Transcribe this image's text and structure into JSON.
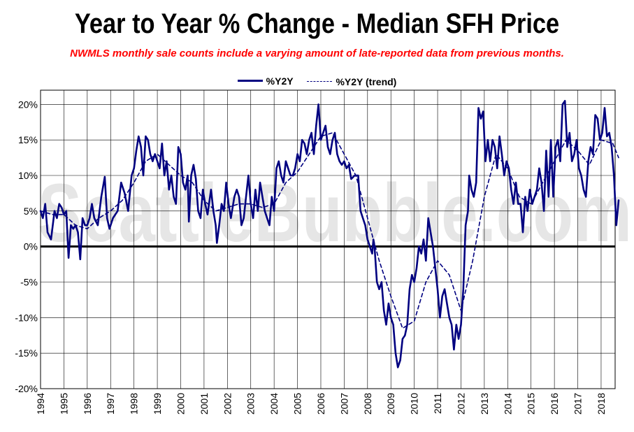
{
  "chart_data": {
    "type": "line",
    "title": "Year to Year % Change - Median SFH Price",
    "subtitle": "NWMLS monthly sale counts include a varying amount of late-reported  data from previous months.",
    "xlabel": "",
    "ylabel": "",
    "ylim": [
      -20,
      22
    ],
    "xlim": [
      1994.0,
      2018.6
    ],
    "grid": true,
    "legend_position": "top-center",
    "watermark": "SeattleBubble.com",
    "x_tick_labels": [
      "1994",
      "1995",
      "1996",
      "1997",
      "1998",
      "1999",
      "2000",
      "2001",
      "2002",
      "2003",
      "2004",
      "2005",
      "2006",
      "2007",
      "2008",
      "2009",
      "2010",
      "2011",
      "2012",
      "2013",
      "2014",
      "2015",
      "2016",
      "2017",
      "2018"
    ],
    "y_tick_labels": [
      "-20%",
      "-15%",
      "-10%",
      "-5%",
      "0%",
      "5%",
      "10%",
      "15%",
      "20%"
    ],
    "series": [
      {
        "name": "%Y2Y",
        "style": "solid",
        "color": "#000080",
        "points": [
          [
            1994.0,
            5
          ],
          [
            1994.1,
            4
          ],
          [
            1994.2,
            6
          ],
          [
            1994.3,
            2
          ],
          [
            1994.45,
            1
          ],
          [
            1994.6,
            5
          ],
          [
            1994.7,
            4
          ],
          [
            1994.8,
            6
          ],
          [
            1994.9,
            5.5
          ],
          [
            1995.0,
            4.5
          ],
          [
            1995.1,
            5
          ],
          [
            1995.2,
            -1.6
          ],
          [
            1995.3,
            3
          ],
          [
            1995.4,
            2.5
          ],
          [
            1995.5,
            3
          ],
          [
            1995.6,
            2
          ],
          [
            1995.7,
            -1.8
          ],
          [
            1995.8,
            4
          ],
          [
            1995.9,
            3
          ],
          [
            1996.0,
            3
          ],
          [
            1996.1,
            4
          ],
          [
            1996.2,
            6
          ],
          [
            1996.3,
            4
          ],
          [
            1996.45,
            3
          ],
          [
            1996.6,
            7
          ],
          [
            1996.75,
            9.8
          ],
          [
            1996.85,
            4
          ],
          [
            1996.95,
            2.5
          ],
          [
            1997.1,
            4
          ],
          [
            1997.3,
            5
          ],
          [
            1997.45,
            9
          ],
          [
            1997.6,
            7.5
          ],
          [
            1997.75,
            5
          ],
          [
            1997.9,
            10
          ],
          [
            1998.0,
            11
          ],
          [
            1998.1,
            13.5
          ],
          [
            1998.2,
            15.5
          ],
          [
            1998.3,
            14
          ],
          [
            1998.4,
            10
          ],
          [
            1998.5,
            15.5
          ],
          [
            1998.6,
            15
          ],
          [
            1998.7,
            13
          ],
          [
            1998.8,
            12
          ],
          [
            1998.9,
            13
          ],
          [
            1999.0,
            12
          ],
          [
            1999.1,
            11
          ],
          [
            1999.2,
            14.5
          ],
          [
            1999.3,
            10
          ],
          [
            1999.4,
            12
          ],
          [
            1999.5,
            8
          ],
          [
            1999.6,
            10
          ],
          [
            1999.7,
            7
          ],
          [
            1999.8,
            6
          ],
          [
            1999.9,
            14
          ],
          [
            2000.0,
            13
          ],
          [
            2000.1,
            9
          ],
          [
            2000.2,
            8
          ],
          [
            2000.3,
            10
          ],
          [
            2000.35,
            3.5
          ],
          [
            2000.45,
            10
          ],
          [
            2000.55,
            11.5
          ],
          [
            2000.65,
            9.5
          ],
          [
            2000.75,
            5
          ],
          [
            2000.85,
            4
          ],
          [
            2000.95,
            8
          ],
          [
            2001.05,
            6
          ],
          [
            2001.15,
            4.5
          ],
          [
            2001.3,
            8
          ],
          [
            2001.4,
            5
          ],
          [
            2001.5,
            3
          ],
          [
            2001.55,
            0.5
          ],
          [
            2001.65,
            3
          ],
          [
            2001.75,
            6
          ],
          [
            2001.85,
            5
          ],
          [
            2001.95,
            9
          ],
          [
            2002.05,
            6
          ],
          [
            2002.15,
            4
          ],
          [
            2002.3,
            7
          ],
          [
            2002.4,
            8
          ],
          [
            2002.5,
            7
          ],
          [
            2002.6,
            3
          ],
          [
            2002.7,
            4
          ],
          [
            2002.8,
            7
          ],
          [
            2002.9,
            10
          ],
          [
            2003.0,
            6
          ],
          [
            2003.1,
            4
          ],
          [
            2003.2,
            8
          ],
          [
            2003.3,
            5
          ],
          [
            2003.4,
            9
          ],
          [
            2003.5,
            7
          ],
          [
            2003.6,
            5
          ],
          [
            2003.7,
            4
          ],
          [
            2003.8,
            3
          ],
          [
            2003.9,
            7
          ],
          [
            2004.0,
            5
          ],
          [
            2004.1,
            11
          ],
          [
            2004.2,
            12
          ],
          [
            2004.3,
            10
          ],
          [
            2004.4,
            9
          ],
          [
            2004.5,
            12
          ],
          [
            2004.6,
            11
          ],
          [
            2004.7,
            10
          ],
          [
            2004.8,
            10
          ],
          [
            2004.9,
            11
          ],
          [
            2005.0,
            13
          ],
          [
            2005.1,
            12
          ],
          [
            2005.2,
            15
          ],
          [
            2005.3,
            14.5
          ],
          [
            2005.4,
            13
          ],
          [
            2005.5,
            15
          ],
          [
            2005.6,
            16
          ],
          [
            2005.7,
            13
          ],
          [
            2005.8,
            17
          ],
          [
            2005.9,
            20
          ],
          [
            2006.0,
            15
          ],
          [
            2006.1,
            16
          ],
          [
            2006.2,
            17
          ],
          [
            2006.3,
            14
          ],
          [
            2006.4,
            13
          ],
          [
            2006.5,
            15
          ],
          [
            2006.6,
            16
          ],
          [
            2006.7,
            13
          ],
          [
            2006.8,
            12
          ],
          [
            2006.9,
            11.5
          ],
          [
            2007.0,
            12
          ],
          [
            2007.1,
            11
          ],
          [
            2007.2,
            11.5
          ],
          [
            2007.3,
            9.5
          ],
          [
            2007.45,
            10
          ],
          [
            2007.6,
            10
          ],
          [
            2007.7,
            5
          ],
          [
            2007.8,
            4
          ],
          [
            2007.9,
            3
          ],
          [
            2008.0,
            1
          ],
          [
            2008.1,
            0
          ],
          [
            2008.2,
            -1
          ],
          [
            2008.25,
            1
          ],
          [
            2008.3,
            0
          ],
          [
            2008.4,
            -5
          ],
          [
            2008.5,
            -6
          ],
          [
            2008.6,
            -5
          ],
          [
            2008.7,
            -9
          ],
          [
            2008.8,
            -11
          ],
          [
            2008.9,
            -8
          ],
          [
            2009.0,
            -10
          ],
          [
            2009.1,
            -11
          ],
          [
            2009.2,
            -15
          ],
          [
            2009.3,
            -17
          ],
          [
            2009.4,
            -16
          ],
          [
            2009.5,
            -13
          ],
          [
            2009.6,
            -12.5
          ],
          [
            2009.7,
            -11
          ],
          [
            2009.8,
            -6
          ],
          [
            2009.9,
            -4
          ],
          [
            2010.0,
            -5
          ],
          [
            2010.1,
            -3
          ],
          [
            2010.2,
            0
          ],
          [
            2010.3,
            -1
          ],
          [
            2010.4,
            1
          ],
          [
            2010.5,
            -2
          ],
          [
            2010.6,
            4
          ],
          [
            2010.7,
            2
          ],
          [
            2010.8,
            0
          ],
          [
            2010.9,
            -3
          ],
          [
            2011.0,
            -6
          ],
          [
            2011.1,
            -10
          ],
          [
            2011.2,
            -7
          ],
          [
            2011.3,
            -6
          ],
          [
            2011.4,
            -8
          ],
          [
            2011.5,
            -10
          ],
          [
            2011.6,
            -11
          ],
          [
            2011.7,
            -14.5
          ],
          [
            2011.8,
            -11
          ],
          [
            2011.9,
            -13
          ],
          [
            2012.0,
            -11
          ],
          [
            2012.1,
            -6
          ],
          [
            2012.2,
            3
          ],
          [
            2012.3,
            5
          ],
          [
            2012.35,
            10
          ],
          [
            2012.45,
            8
          ],
          [
            2012.55,
            7
          ],
          [
            2012.65,
            9
          ],
          [
            2012.75,
            19.5
          ],
          [
            2012.85,
            18
          ],
          [
            2012.95,
            19
          ],
          [
            2013.05,
            12
          ],
          [
            2013.15,
            15
          ],
          [
            2013.25,
            12
          ],
          [
            2013.35,
            15
          ],
          [
            2013.45,
            14
          ],
          [
            2013.55,
            11
          ],
          [
            2013.65,
            15.5
          ],
          [
            2013.75,
            13
          ],
          [
            2013.85,
            10
          ],
          [
            2013.95,
            12
          ],
          [
            2014.05,
            11
          ],
          [
            2014.15,
            8
          ],
          [
            2014.25,
            6
          ],
          [
            2014.35,
            9
          ],
          [
            2014.45,
            6
          ],
          [
            2014.55,
            6
          ],
          [
            2014.65,
            2
          ],
          [
            2014.75,
            7
          ],
          [
            2014.85,
            5
          ],
          [
            2014.95,
            8
          ],
          [
            2015.05,
            6
          ],
          [
            2015.15,
            7
          ],
          [
            2015.25,
            8
          ],
          [
            2015.35,
            11
          ],
          [
            2015.45,
            9
          ],
          [
            2015.55,
            5
          ],
          [
            2015.65,
            13.5
          ],
          [
            2015.75,
            7
          ],
          [
            2015.85,
            15
          ],
          [
            2015.95,
            7
          ],
          [
            2016.05,
            14
          ],
          [
            2016.15,
            15
          ],
          [
            2016.25,
            12
          ],
          [
            2016.35,
            20
          ],
          [
            2016.45,
            20.5
          ],
          [
            2016.55,
            14
          ],
          [
            2016.65,
            16
          ],
          [
            2016.75,
            12
          ],
          [
            2016.85,
            13
          ],
          [
            2016.95,
            15
          ],
          [
            2017.05,
            11
          ],
          [
            2017.15,
            10
          ],
          [
            2017.25,
            8
          ],
          [
            2017.35,
            7
          ],
          [
            2017.45,
            12
          ],
          [
            2017.55,
            14
          ],
          [
            2017.65,
            13
          ],
          [
            2017.75,
            18.5
          ],
          [
            2017.85,
            18
          ],
          [
            2017.95,
            15
          ],
          [
            2018.05,
            16
          ],
          [
            2018.15,
            19.5
          ],
          [
            2018.25,
            15.5
          ],
          [
            2018.35,
            16
          ],
          [
            2018.45,
            14
          ],
          [
            2018.55,
            10
          ],
          [
            2018.65,
            3
          ],
          [
            2018.75,
            6.5
          ]
        ]
      },
      {
        "name": "%Y2Y (trend)",
        "style": "dashed",
        "color": "#000080",
        "points": [
          [
            1994.0,
            5
          ],
          [
            1994.5,
            4.5
          ],
          [
            1995.0,
            4.5
          ],
          [
            1995.5,
            3
          ],
          [
            1996.0,
            2.5
          ],
          [
            1996.5,
            4
          ],
          [
            1997.0,
            5
          ],
          [
            1997.5,
            6.5
          ],
          [
            1998.0,
            9
          ],
          [
            1998.5,
            12
          ],
          [
            1999.0,
            13
          ],
          [
            1999.5,
            11.5
          ],
          [
            2000.0,
            10
          ],
          [
            2000.5,
            9
          ],
          [
            2001.0,
            6.5
          ],
          [
            2001.5,
            5
          ],
          [
            2002.0,
            5.5
          ],
          [
            2002.5,
            6
          ],
          [
            2003.0,
            6
          ],
          [
            2003.5,
            5.5
          ],
          [
            2004.0,
            6
          ],
          [
            2004.5,
            9
          ],
          [
            2005.0,
            10.5
          ],
          [
            2005.5,
            13
          ],
          [
            2006.0,
            15.5
          ],
          [
            2006.5,
            16
          ],
          [
            2007.0,
            13
          ],
          [
            2007.5,
            10
          ],
          [
            2008.0,
            4
          ],
          [
            2008.5,
            -2
          ],
          [
            2009.0,
            -7
          ],
          [
            2009.5,
            -11.5
          ],
          [
            2010.0,
            -10.5
          ],
          [
            2010.5,
            -5
          ],
          [
            2011.0,
            -2
          ],
          [
            2011.5,
            -4
          ],
          [
            2012.0,
            -9
          ],
          [
            2012.5,
            -2
          ],
          [
            2013.0,
            7
          ],
          [
            2013.5,
            13
          ],
          [
            2014.0,
            11
          ],
          [
            2014.5,
            7
          ],
          [
            2015.0,
            6
          ],
          [
            2015.5,
            9
          ],
          [
            2016.0,
            12
          ],
          [
            2016.5,
            15
          ],
          [
            2017.0,
            13.5
          ],
          [
            2017.5,
            11.5
          ],
          [
            2018.0,
            15
          ],
          [
            2018.5,
            14.5
          ],
          [
            2018.75,
            12.5
          ]
        ]
      }
    ]
  }
}
